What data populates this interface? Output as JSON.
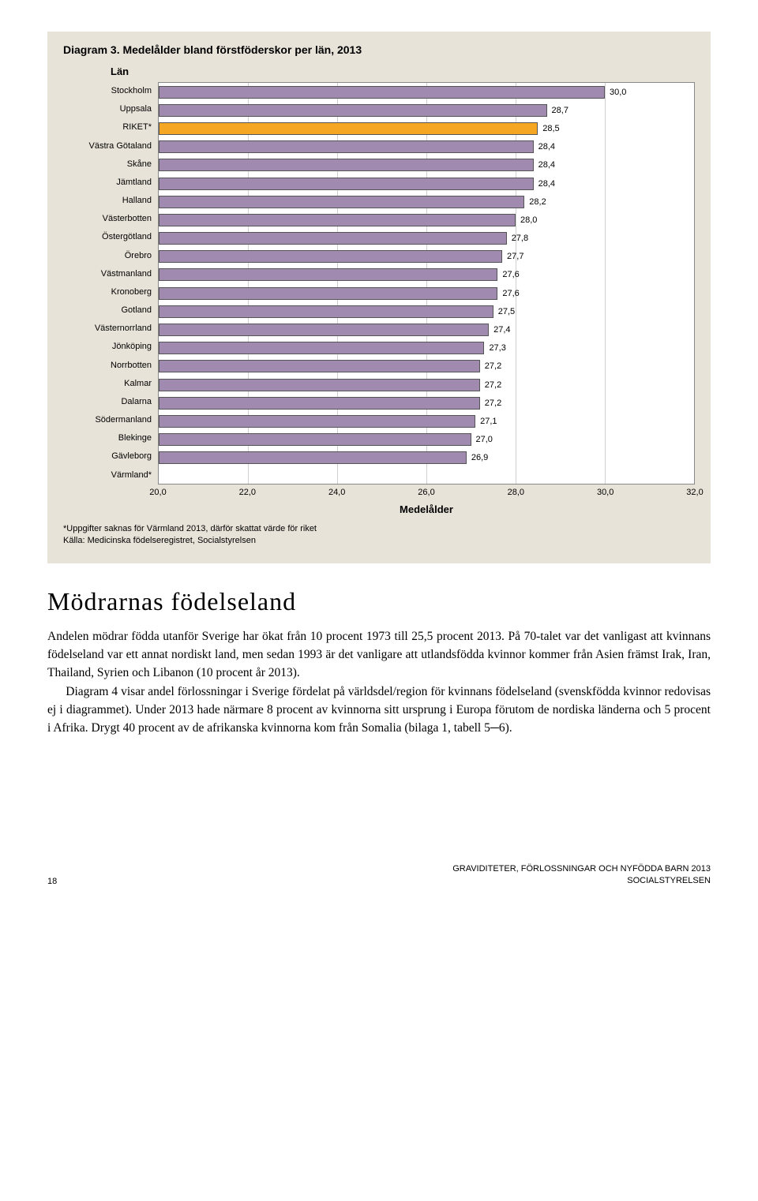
{
  "chart": {
    "title": "Diagram 3. Medelålder bland förstföderskor per län, 2013",
    "subtitle": "Län",
    "x_title": "Medelålder",
    "xlim_min": 20.0,
    "xlim_max": 32.0,
    "xticks": [
      "20,0",
      "22,0",
      "24,0",
      "26,0",
      "28,0",
      "30,0",
      "32,0"
    ],
    "bar_color_default": "#a08ab0",
    "bar_color_highlight": "#f5a623",
    "bar_border": "#555555",
    "grid_color": "#d0d0d0",
    "background": "#ffffff",
    "categories": [
      {
        "label": "Stockholm",
        "value": 30.0,
        "display": "30,0",
        "highlight": false
      },
      {
        "label": "Uppsala",
        "value": 28.7,
        "display": "28,7",
        "highlight": false
      },
      {
        "label": "RIKET*",
        "value": 28.5,
        "display": "28,5",
        "highlight": true
      },
      {
        "label": "Västra Götaland",
        "value": 28.4,
        "display": "28,4",
        "highlight": false
      },
      {
        "label": "Skåne",
        "value": 28.4,
        "display": "28,4",
        "highlight": false
      },
      {
        "label": "Jämtland",
        "value": 28.4,
        "display": "28,4",
        "highlight": false
      },
      {
        "label": "Halland",
        "value": 28.2,
        "display": "28,2",
        "highlight": false
      },
      {
        "label": "Västerbotten",
        "value": 28.0,
        "display": "28,0",
        "highlight": false
      },
      {
        "label": "Östergötland",
        "value": 27.8,
        "display": "27,8",
        "highlight": false
      },
      {
        "label": "Örebro",
        "value": 27.7,
        "display": "27,7",
        "highlight": false
      },
      {
        "label": "Västmanland",
        "value": 27.6,
        "display": "27,6",
        "highlight": false
      },
      {
        "label": "Kronoberg",
        "value": 27.6,
        "display": "27,6",
        "highlight": false
      },
      {
        "label": "Gotland",
        "value": 27.5,
        "display": "27,5",
        "highlight": false
      },
      {
        "label": "Västernorrland",
        "value": 27.4,
        "display": "27,4",
        "highlight": false
      },
      {
        "label": "Jönköping",
        "value": 27.3,
        "display": "27,3",
        "highlight": false
      },
      {
        "label": "Norrbotten",
        "value": 27.2,
        "display": "27,2",
        "highlight": false
      },
      {
        "label": "Kalmar",
        "value": 27.2,
        "display": "27,2",
        "highlight": false
      },
      {
        "label": "Dalarna",
        "value": 27.2,
        "display": "27,2",
        "highlight": false
      },
      {
        "label": "Södermanland",
        "value": 27.1,
        "display": "27,1",
        "highlight": false
      },
      {
        "label": "Blekinge",
        "value": 27.0,
        "display": "27,0",
        "highlight": false
      },
      {
        "label": "Gävleborg",
        "value": 26.9,
        "display": "26,9",
        "highlight": false
      },
      {
        "label": "Värmland*",
        "value": null,
        "display": "",
        "highlight": false
      }
    ],
    "footnote1": "*Uppgifter saknas för Värmland 2013, därför skattat värde för riket",
    "footnote2": "Källa: Medicinska födelseregistret, Socialstyrelsen"
  },
  "section": {
    "title": "Mödrarnas födelseland",
    "p1": "Andelen mödrar födda utanför Sverige har ökat från 10 procent 1973 till 25,5 procent 2013. På 70-talet var det vanligast att kvinnans födelseland var ett annat nordiskt land, men sedan 1993 är det vanligare att utlandsfödda kvinnor kommer från Asien främst Irak, Iran, Thailand, Syrien och Libanon (10 procent år 2013).",
    "p2": "Diagram 4 visar andel förlossningar i Sverige fördelat på världsdel/region för kvinnans födelseland (svenskfödda kvinnor redovisas ej i diagrammet). Under 2013 hade närmare 8 procent av kvinnorna sitt ursprung i Europa förutom de nordiska länderna och 5 procent i Afrika. Drygt 40 procent av de afrikanska kvinnorna kom från Somalia (bilaga 1, tabell 5─6)."
  },
  "footer": {
    "page": "18",
    "doc_title": "GRAVIDITETER, FÖRLOSSNINGAR OCH NYFÖDDA BARN 2013",
    "org": "SOCIALSTYRELSEN"
  }
}
